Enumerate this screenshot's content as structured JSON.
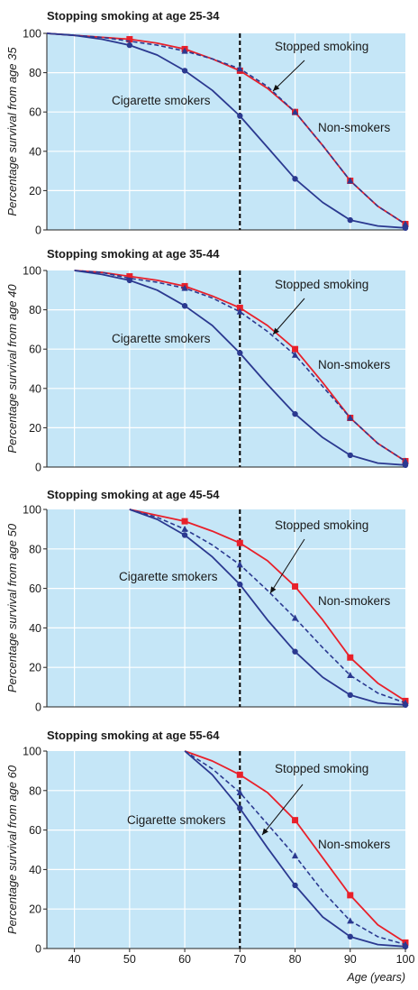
{
  "chart_data": [
    {
      "type": "line",
      "title": "Stopping smoking at age 25-34",
      "ylabel": "Percentage survival from age 35",
      "xlabel": "",
      "xlim": [
        35,
        100
      ],
      "ylim": [
        0,
        100
      ],
      "y_ticks": [
        "100",
        "80",
        "60",
        "40",
        "20",
        "0"
      ],
      "marker_line_age": 70,
      "annotations": [
        "Stopped smoking",
        "Cigarette smokers",
        "Non-smokers"
      ],
      "series": [
        {
          "name": "Non-smokers",
          "color": "#e8202a",
          "dashed": false,
          "marker": "square",
          "x": [
            35,
            40,
            45,
            50,
            55,
            60,
            65,
            70,
            75,
            80,
            85,
            90,
            95,
            100
          ],
          "y": [
            100,
            99,
            98,
            97,
            95,
            92,
            87,
            81,
            72,
            60,
            43,
            25,
            12,
            3
          ],
          "marked_x": [
            50,
            60,
            70,
            80,
            90,
            100
          ]
        },
        {
          "name": "Stopped smoking",
          "color": "#2b3990",
          "dashed": true,
          "marker": "triangle",
          "x": [
            35,
            40,
            45,
            50,
            55,
            60,
            65,
            70,
            75,
            80,
            85,
            90,
            95,
            100
          ],
          "y": [
            100,
            99,
            98,
            96,
            94,
            91,
            87,
            82,
            73,
            60,
            43,
            25,
            12,
            3
          ],
          "marked_x": [
            60,
            70,
            80,
            90,
            100
          ]
        },
        {
          "name": "Cigarette smokers",
          "color": "#2b3990",
          "dashed": false,
          "marker": "circle",
          "x": [
            35,
            40,
            45,
            50,
            55,
            60,
            65,
            70,
            75,
            80,
            85,
            90,
            95,
            100
          ],
          "y": [
            100,
            99,
            97,
            94,
            89,
            81,
            71,
            58,
            42,
            26,
            14,
            5,
            2,
            1
          ],
          "marked_x": [
            50,
            60,
            70,
            80,
            90,
            100
          ]
        }
      ]
    },
    {
      "type": "line",
      "title": "Stopping smoking at age 35-44",
      "ylabel": "Percentage survival from age 40",
      "xlabel": "",
      "xlim": [
        35,
        100
      ],
      "ylim": [
        0,
        100
      ],
      "y_ticks": [
        "100",
        "80",
        "60",
        "40",
        "20",
        "0"
      ],
      "marker_line_age": 70,
      "annotations": [
        "Stopped smoking",
        "Cigarette smokers",
        "Non-smokers"
      ],
      "series": [
        {
          "name": "Non-smokers",
          "color": "#e8202a",
          "dashed": false,
          "marker": "square",
          "x": [
            40,
            45,
            50,
            55,
            60,
            65,
            70,
            75,
            80,
            85,
            90,
            95,
            100
          ],
          "y": [
            100,
            99,
            97,
            95,
            92,
            87,
            81,
            72,
            60,
            43,
            25,
            12,
            3
          ],
          "marked_x": [
            50,
            60,
            70,
            80,
            90,
            100
          ]
        },
        {
          "name": "Stopped smoking",
          "color": "#2b3990",
          "dashed": true,
          "marker": "triangle",
          "x": [
            40,
            45,
            50,
            55,
            60,
            65,
            70,
            75,
            80,
            85,
            90,
            95,
            100
          ],
          "y": [
            100,
            99,
            96,
            94,
            91,
            86,
            79,
            69,
            57,
            41,
            25,
            12,
            3
          ],
          "marked_x": [
            60,
            70,
            80,
            90,
            100
          ]
        },
        {
          "name": "Cigarette smokers",
          "color": "#2b3990",
          "dashed": false,
          "marker": "circle",
          "x": [
            40,
            45,
            50,
            55,
            60,
            65,
            70,
            75,
            80,
            85,
            90,
            95,
            100
          ],
          "y": [
            100,
            98,
            95,
            90,
            82,
            72,
            58,
            42,
            27,
            15,
            6,
            2,
            1
          ],
          "marked_x": [
            50,
            60,
            70,
            80,
            90,
            100
          ]
        }
      ]
    },
    {
      "type": "line",
      "title": "Stopping smoking at age 45-54",
      "ylabel": "Percentage survival from age 50",
      "xlabel": "",
      "xlim": [
        35,
        100
      ],
      "ylim": [
        0,
        100
      ],
      "y_ticks": [
        "100",
        "80",
        "60",
        "40",
        "20",
        "0"
      ],
      "marker_line_age": 70,
      "annotations": [
        "Stopped smoking",
        "Cigarette smokers",
        "Non-smokers"
      ],
      "series": [
        {
          "name": "Non-smokers",
          "color": "#e8202a",
          "dashed": false,
          "marker": "square",
          "x": [
            50,
            55,
            60,
            65,
            70,
            75,
            80,
            85,
            90,
            95,
            100
          ],
          "y": [
            100,
            97,
            94,
            89,
            83,
            74,
            61,
            44,
            25,
            12,
            3
          ],
          "marked_x": [
            60,
            70,
            80,
            90,
            100
          ]
        },
        {
          "name": "Stopped smoking",
          "color": "#2b3990",
          "dashed": true,
          "marker": "triangle",
          "x": [
            50,
            55,
            60,
            65,
            70,
            75,
            80,
            85,
            90,
            95,
            100
          ],
          "y": [
            100,
            96,
            90,
            82,
            72,
            59,
            45,
            30,
            16,
            7,
            2
          ],
          "marked_x": [
            60,
            70,
            80,
            90,
            100
          ]
        },
        {
          "name": "Cigarette smokers",
          "color": "#2b3990",
          "dashed": false,
          "marker": "circle",
          "x": [
            50,
            55,
            60,
            65,
            70,
            75,
            80,
            85,
            90,
            95,
            100
          ],
          "y": [
            100,
            95,
            87,
            76,
            62,
            44,
            28,
            15,
            6,
            2,
            1
          ],
          "marked_x": [
            60,
            70,
            80,
            90,
            100
          ]
        }
      ]
    },
    {
      "type": "line",
      "title": "Stopping smoking at age 55-64",
      "ylabel": "Percentage survival from age 60",
      "xlabel": "Age (years)",
      "xlim": [
        35,
        100
      ],
      "ylim": [
        0,
        100
      ],
      "y_ticks": [
        "100",
        "80",
        "60",
        "40",
        "20",
        "0"
      ],
      "x_ticks": [
        "40",
        "50",
        "60",
        "70",
        "80",
        "90",
        "100"
      ],
      "marker_line_age": 70,
      "annotations": [
        "Stopped smoking",
        "Cigarette smokers",
        "Non-smokers"
      ],
      "series": [
        {
          "name": "Non-smokers",
          "color": "#e8202a",
          "dashed": false,
          "marker": "square",
          "x": [
            60,
            65,
            70,
            75,
            80,
            85,
            90,
            95,
            100
          ],
          "y": [
            100,
            95,
            88,
            79,
            65,
            46,
            27,
            12,
            3
          ],
          "marked_x": [
            70,
            80,
            90,
            100
          ]
        },
        {
          "name": "Stopped smoking",
          "color": "#2b3990",
          "dashed": true,
          "marker": "triangle",
          "x": [
            60,
            65,
            70,
            75,
            80,
            85,
            90,
            95,
            100
          ],
          "y": [
            100,
            91,
            79,
            63,
            47,
            29,
            14,
            6,
            2
          ],
          "marked_x": [
            70,
            80,
            90,
            100
          ]
        },
        {
          "name": "Cigarette smokers",
          "color": "#2b3990",
          "dashed": false,
          "marker": "circle",
          "x": [
            60,
            65,
            70,
            75,
            80,
            85,
            90,
            95,
            100
          ],
          "y": [
            100,
            88,
            71,
            51,
            32,
            16,
            6,
            2,
            1
          ],
          "marked_x": [
            70,
            80,
            90,
            100
          ]
        }
      ]
    }
  ],
  "colors": {
    "plot_background": "#c5e6f7",
    "non_smokers": "#e8202a",
    "smokers": "#2b3990",
    "grid": "#ffffff"
  }
}
